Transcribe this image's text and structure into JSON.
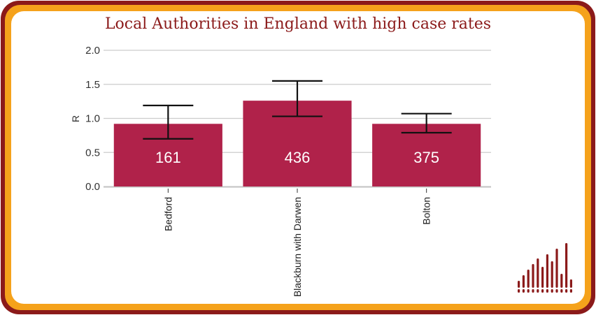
{
  "title": "Local Authorities in England with high case rates",
  "colors": {
    "frame_outer": "#8b1a1a",
    "frame_inner": "#f5a21b",
    "bar": "#b0224a",
    "grid": "#cccccc",
    "title": "#8b1a1a",
    "logo": "#8b1a1a"
  },
  "chart_data": {
    "type": "bar",
    "title": "Local Authorities in England with high case rates",
    "xlabel": "",
    "ylabel": "R",
    "categories": [
      "Bedford",
      "Blackburn with Darwen",
      "Bolton"
    ],
    "values": [
      0.92,
      1.26,
      0.92
    ],
    "error_low": [
      0.7,
      1.03,
      0.79
    ],
    "error_high": [
      1.19,
      1.55,
      1.07
    ],
    "data_labels": [
      "161",
      "436",
      "375"
    ],
    "ylim": [
      0,
      2
    ],
    "yticks": [
      "0.0",
      "0.5",
      "1.0",
      "1.5",
      "2.0"
    ],
    "grid": true
  }
}
